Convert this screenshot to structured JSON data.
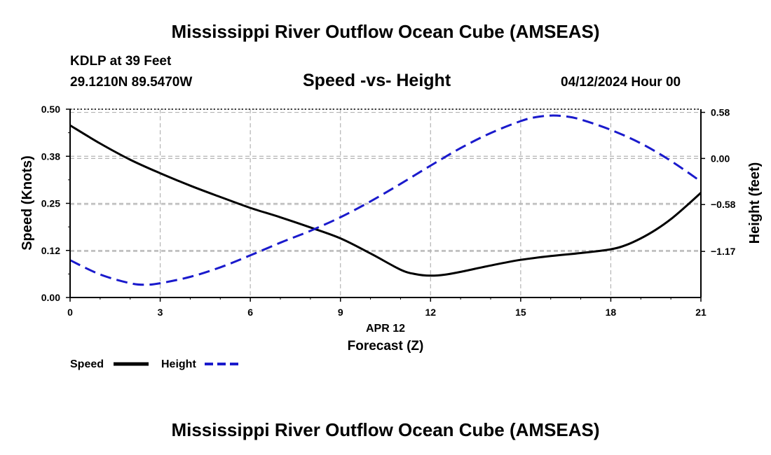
{
  "page": {
    "title": "Mississippi River Outflow Ocean Cube (AMSEAS)",
    "footer_title": "Mississippi River Outflow Ocean Cube (AMSEAS)",
    "station": "KDLP at 39 Feet",
    "coords": "29.1210N  89.5470W",
    "datetime": "04/12/2024 Hour 00"
  },
  "legend": {
    "speed_label": "Speed",
    "height_label": "Height"
  },
  "colors": {
    "speed": "#000000",
    "height": "#1a1acc",
    "grid": "#b4b4b4"
  },
  "chart_data": {
    "type": "line",
    "title": "Speed -vs- Height",
    "xlabel": "Forecast (Z)",
    "xlabel_date": "APR 12",
    "ylabel": "Speed (Knots)",
    "y2label": "Height (feet)",
    "xlim": [
      0,
      21
    ],
    "ylim": [
      0,
      0.5
    ],
    "y2lim": [
      -1.75,
      0.62
    ],
    "x_ticks": [
      0,
      3,
      6,
      9,
      12,
      15,
      18,
      21
    ],
    "y_ticks": [
      0.0,
      0.125,
      0.25,
      0.375,
      0.5
    ],
    "y_tick_labels": [
      "0.00",
      "0.12",
      "0.25",
      "0.38",
      "0.50"
    ],
    "y2_ticks": [
      0.58,
      0.0,
      -0.58,
      -1.17
    ],
    "y2_tick_labels": [
      "0.58",
      "0.00",
      "−0.58",
      "−1.17"
    ],
    "series": [
      {
        "name": "Speed",
        "axis": "left",
        "style": "solid",
        "x": [
          0,
          1,
          2,
          3,
          4,
          5,
          6,
          7,
          8,
          9,
          10,
          11,
          11.5,
          12,
          12.5,
          13,
          14,
          15,
          16,
          17,
          18,
          18.5,
          19,
          19.5,
          20,
          20.5,
          21
        ],
        "values": [
          0.457,
          0.409,
          0.366,
          0.33,
          0.297,
          0.267,
          0.238,
          0.213,
          0.186,
          0.157,
          0.117,
          0.074,
          0.062,
          0.058,
          0.061,
          0.068,
          0.085,
          0.1,
          0.11,
          0.118,
          0.128,
          0.139,
          0.157,
          0.18,
          0.208,
          0.242,
          0.278
        ]
      },
      {
        "name": "Height",
        "axis": "right",
        "style": "dashed",
        "x": [
          0,
          1,
          2,
          2.5,
          3,
          4,
          5,
          6,
          7,
          8,
          9,
          10,
          11,
          12,
          13,
          14,
          15,
          15.5,
          16,
          16.5,
          17,
          18,
          19,
          20,
          21
        ],
        "values": [
          -1.28,
          -1.46,
          -1.57,
          -1.59,
          -1.57,
          -1.49,
          -1.37,
          -1.22,
          -1.06,
          -0.91,
          -0.74,
          -0.54,
          -0.32,
          -0.09,
          0.13,
          0.32,
          0.47,
          0.52,
          0.54,
          0.53,
          0.49,
          0.36,
          0.19,
          -0.03,
          -0.29
        ]
      }
    ]
  }
}
